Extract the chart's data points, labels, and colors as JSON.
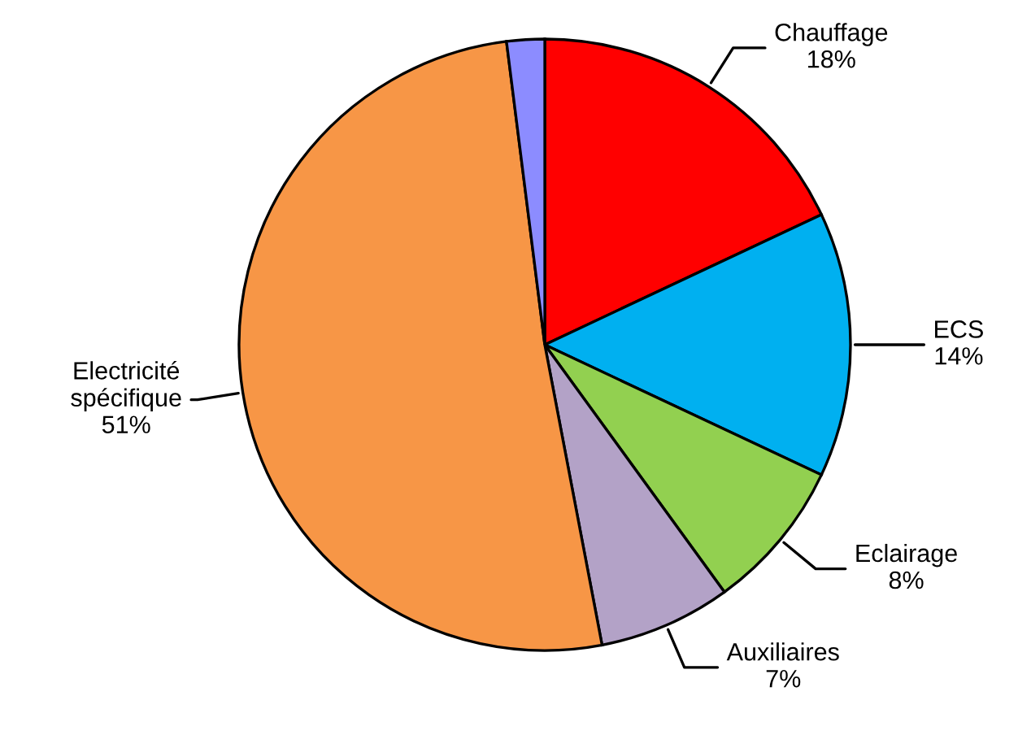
{
  "chart_data": {
    "type": "pie",
    "categories": [
      "Chauffage",
      "ECS",
      "Eclairage",
      "Auxiliaires",
      "Electricité spécifique",
      null
    ],
    "values": [
      18,
      14,
      8,
      7,
      51,
      2
    ],
    "value_labels": [
      "18%",
      "14%",
      "8%",
      "7%",
      "51%",
      null
    ],
    "colors": [
      "#ff0000",
      "#00b0f0",
      "#92d050",
      "#b3a2c7",
      "#f79646",
      "#8c8cff"
    ],
    "legend": false
  }
}
